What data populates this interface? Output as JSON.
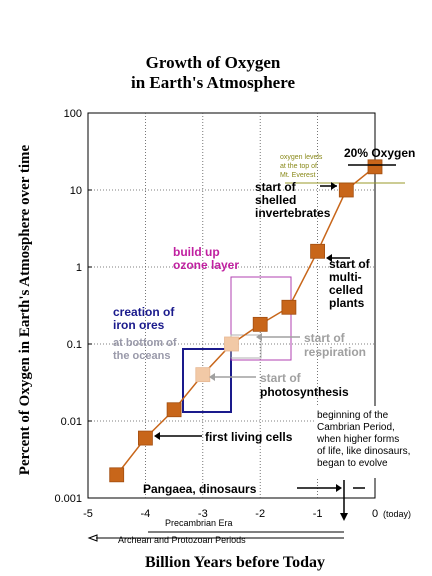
{
  "chart_data": {
    "type": "scatter",
    "title": "Growth of Oxygen",
    "subtitle": "in Earth's Atmosphere",
    "xlabel": "Billion Years before Today",
    "ylabel": "Percent of Oxygen in Earth's Atmosphere over time",
    "y_scale": "log",
    "xlim": [
      -5,
      0
    ],
    "ylim": [
      0.001,
      100
    ],
    "x_tick_labels": [
      "-5",
      "-4",
      "-3",
      "-2",
      "-1",
      "0"
    ],
    "x_today_label": "(today)",
    "y_tick_labels": [
      "100",
      "10",
      "1",
      "0.1",
      "0.01",
      "0.001"
    ],
    "grid": true,
    "colors": {
      "marker": "#c8661a",
      "marker_light": "#f2c9a6",
      "line": "#c8661a"
    },
    "points": [
      {
        "x": -4.5,
        "y": 0.002
      },
      {
        "x": -4.0,
        "y": 0.006
      },
      {
        "x": -3.5,
        "y": 0.014
      },
      {
        "x": -3.0,
        "y": 0.04
      },
      {
        "x": -2.5,
        "y": 0.1
      },
      {
        "x": -2.0,
        "y": 0.18
      },
      {
        "x": -1.5,
        "y": 0.3
      },
      {
        "x": -1.0,
        "y": 1.6
      },
      {
        "x": -0.5,
        "y": 10
      },
      {
        "x": 0.0,
        "y": 20
      }
    ],
    "annotations": {
      "oxygen_20": "20% Oxygen",
      "everest": [
        "oxygen levels",
        "at the top of",
        "Mt. Everest"
      ],
      "shelled": [
        "start of",
        "shelled",
        "invertebrates"
      ],
      "multicelled": [
        "start of",
        "multi-",
        "celled",
        "plants"
      ],
      "ozone": [
        "build up",
        "ozone layer"
      ],
      "iron": [
        "creation of",
        "iron ores"
      ],
      "oceans": [
        "at bottom of",
        "the oceans"
      ],
      "respiration": [
        "start of",
        "respiration"
      ],
      "photosynthesis": [
        "start of",
        "photosynthesis"
      ],
      "cambrian": [
        "beginning of the",
        "Cambrian Period,",
        "when higher forms",
        "of life, like dinosaurs,",
        "began to evolve"
      ],
      "first_cells": "first living cells",
      "pangaea": "Pangaea, dinosaurs",
      "precambrian": "Precambrian Era",
      "archean": "Archean and Protozoan Periods"
    }
  }
}
